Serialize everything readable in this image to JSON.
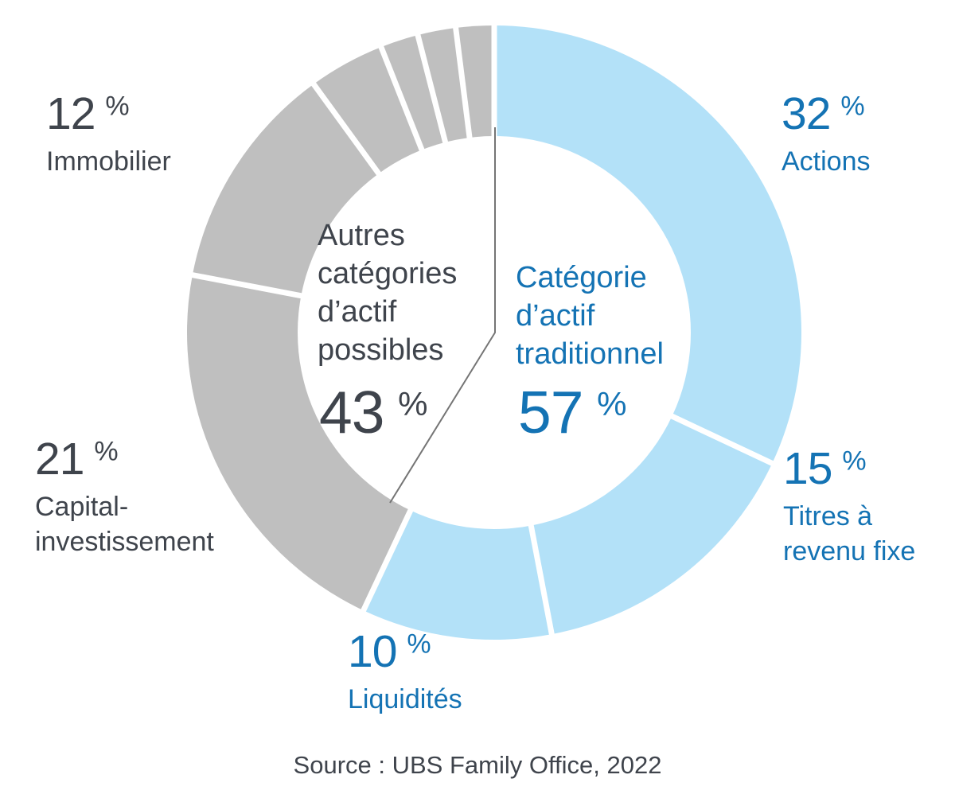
{
  "chart_data": {
    "type": "pie",
    "subtype": "donut",
    "unit": "%",
    "direction": "clockwise",
    "start_angle_deg": 0,
    "legend_position": "callouts",
    "groups": [
      {
        "label": "Catégorie d’actif traditionnel",
        "value": 57,
        "slice_color": "#B3E1F8",
        "text_color": "#1473B4"
      },
      {
        "label": "Autres catégories d’actif possibles",
        "value": 43,
        "slice_color": "#BFBFBF",
        "text_color": "#3F444C"
      }
    ],
    "segments": [
      {
        "label": "Actions",
        "value": 32,
        "group": 0
      },
      {
        "label": "Titres à revenu fixe",
        "value": 15,
        "group": 0
      },
      {
        "label": "Liquidités",
        "value": 10,
        "group": 0
      },
      {
        "label": "Capital-investissement",
        "value": 21,
        "group": 1
      },
      {
        "label": "Immobilier",
        "value": 12,
        "group": 1
      },
      {
        "label": "",
        "value": 4,
        "group": 1
      },
      {
        "label": "",
        "value": 2,
        "group": 1
      },
      {
        "label": "",
        "value": 2,
        "group": 1
      },
      {
        "label": "",
        "value": 2,
        "group": 1
      }
    ]
  },
  "colors": {
    "background": "#FFFFFF",
    "blue_slice": "#B3E1F8",
    "gray_slice": "#BFBFBF",
    "blue_text": "#1473B4",
    "dark_text": "#3F444C",
    "divider_line": "#757575"
  },
  "source": {
    "text": "Source : UBS Family Office, 2022"
  }
}
